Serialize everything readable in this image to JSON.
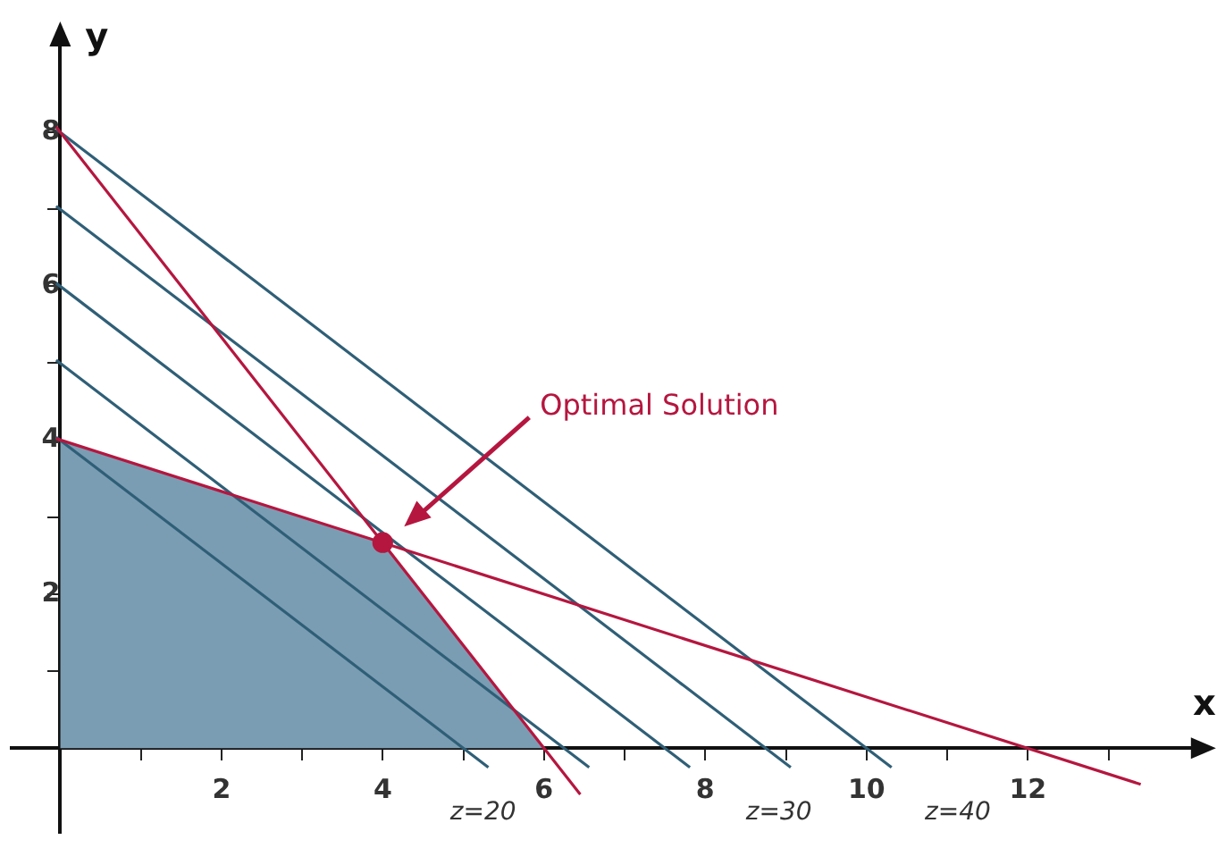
{
  "chart_data": {
    "type": "line",
    "xlabel": "x",
    "ylabel": "y",
    "xlim": [
      -0.6,
      14.2
    ],
    "ylim": [
      -1.1,
      9.3
    ],
    "xticks": [
      {
        "value": 0,
        "label": null
      },
      {
        "value": 1,
        "label": null
      },
      2,
      {
        "value": 3,
        "label": null
      },
      4,
      {
        "value": 5,
        "label": null
      },
      6,
      {
        "value": 7,
        "label": null
      },
      8,
      {
        "value": 9,
        "label": null
      },
      10,
      {
        "value": 11,
        "label": null
      },
      12,
      {
        "value": 13,
        "label": null
      }
    ],
    "yticks": [
      {
        "value": 0,
        "label": null
      },
      {
        "value": 1,
        "label": null
      },
      2,
      {
        "value": 3,
        "label": null
      },
      4,
      {
        "value": 5,
        "label": null
      },
      6,
      {
        "value": 7,
        "label": null
      },
      8
    ],
    "grid": false,
    "legend": false,
    "marker": "none",
    "line_style": "solid",
    "series": [
      {
        "type": "area",
        "color": "#7b9db3",
        "x": [
          0,
          0,
          4,
          6
        ],
        "values": [
          0,
          4,
          2.67,
          0
        ]
      },
      {
        "color": "#2f5f77",
        "x": [
          -0.05,
          5.31
        ],
        "values": [
          4.04,
          -0.25
        ]
      },
      {
        "color": "#2f5f77",
        "x": [
          -0.05,
          6.56
        ],
        "values": [
          5.04,
          -0.25
        ]
      },
      {
        "color": "#2f5f77",
        "x": [
          -0.05,
          7.81
        ],
        "values": [
          6.04,
          -0.25
        ]
      },
      {
        "color": "#2f5f77",
        "x": [
          -0.05,
          9.06
        ],
        "values": [
          7.04,
          -0.25
        ]
      },
      {
        "color": "#2f5f77",
        "x": [
          -0.05,
          10.31
        ],
        "values": [
          8.04,
          -0.25
        ]
      },
      {
        "color": "#b5163f",
        "x": [
          -0.05,
          6.45
        ],
        "values": [
          8.07,
          -0.6
        ]
      },
      {
        "color": "#b5163f",
        "x": [
          -0.05,
          13.4
        ],
        "values": [
          4.02,
          -0.47
        ]
      },
      {
        "type": "scatter",
        "marker": "circle",
        "color": "#b5163f",
        "x": [
          4
        ],
        "values": [
          2.67
        ]
      }
    ],
    "annotations": [
      "Optimal Solution",
      "z=20",
      "z=30",
      "z=40"
    ]
  }
}
